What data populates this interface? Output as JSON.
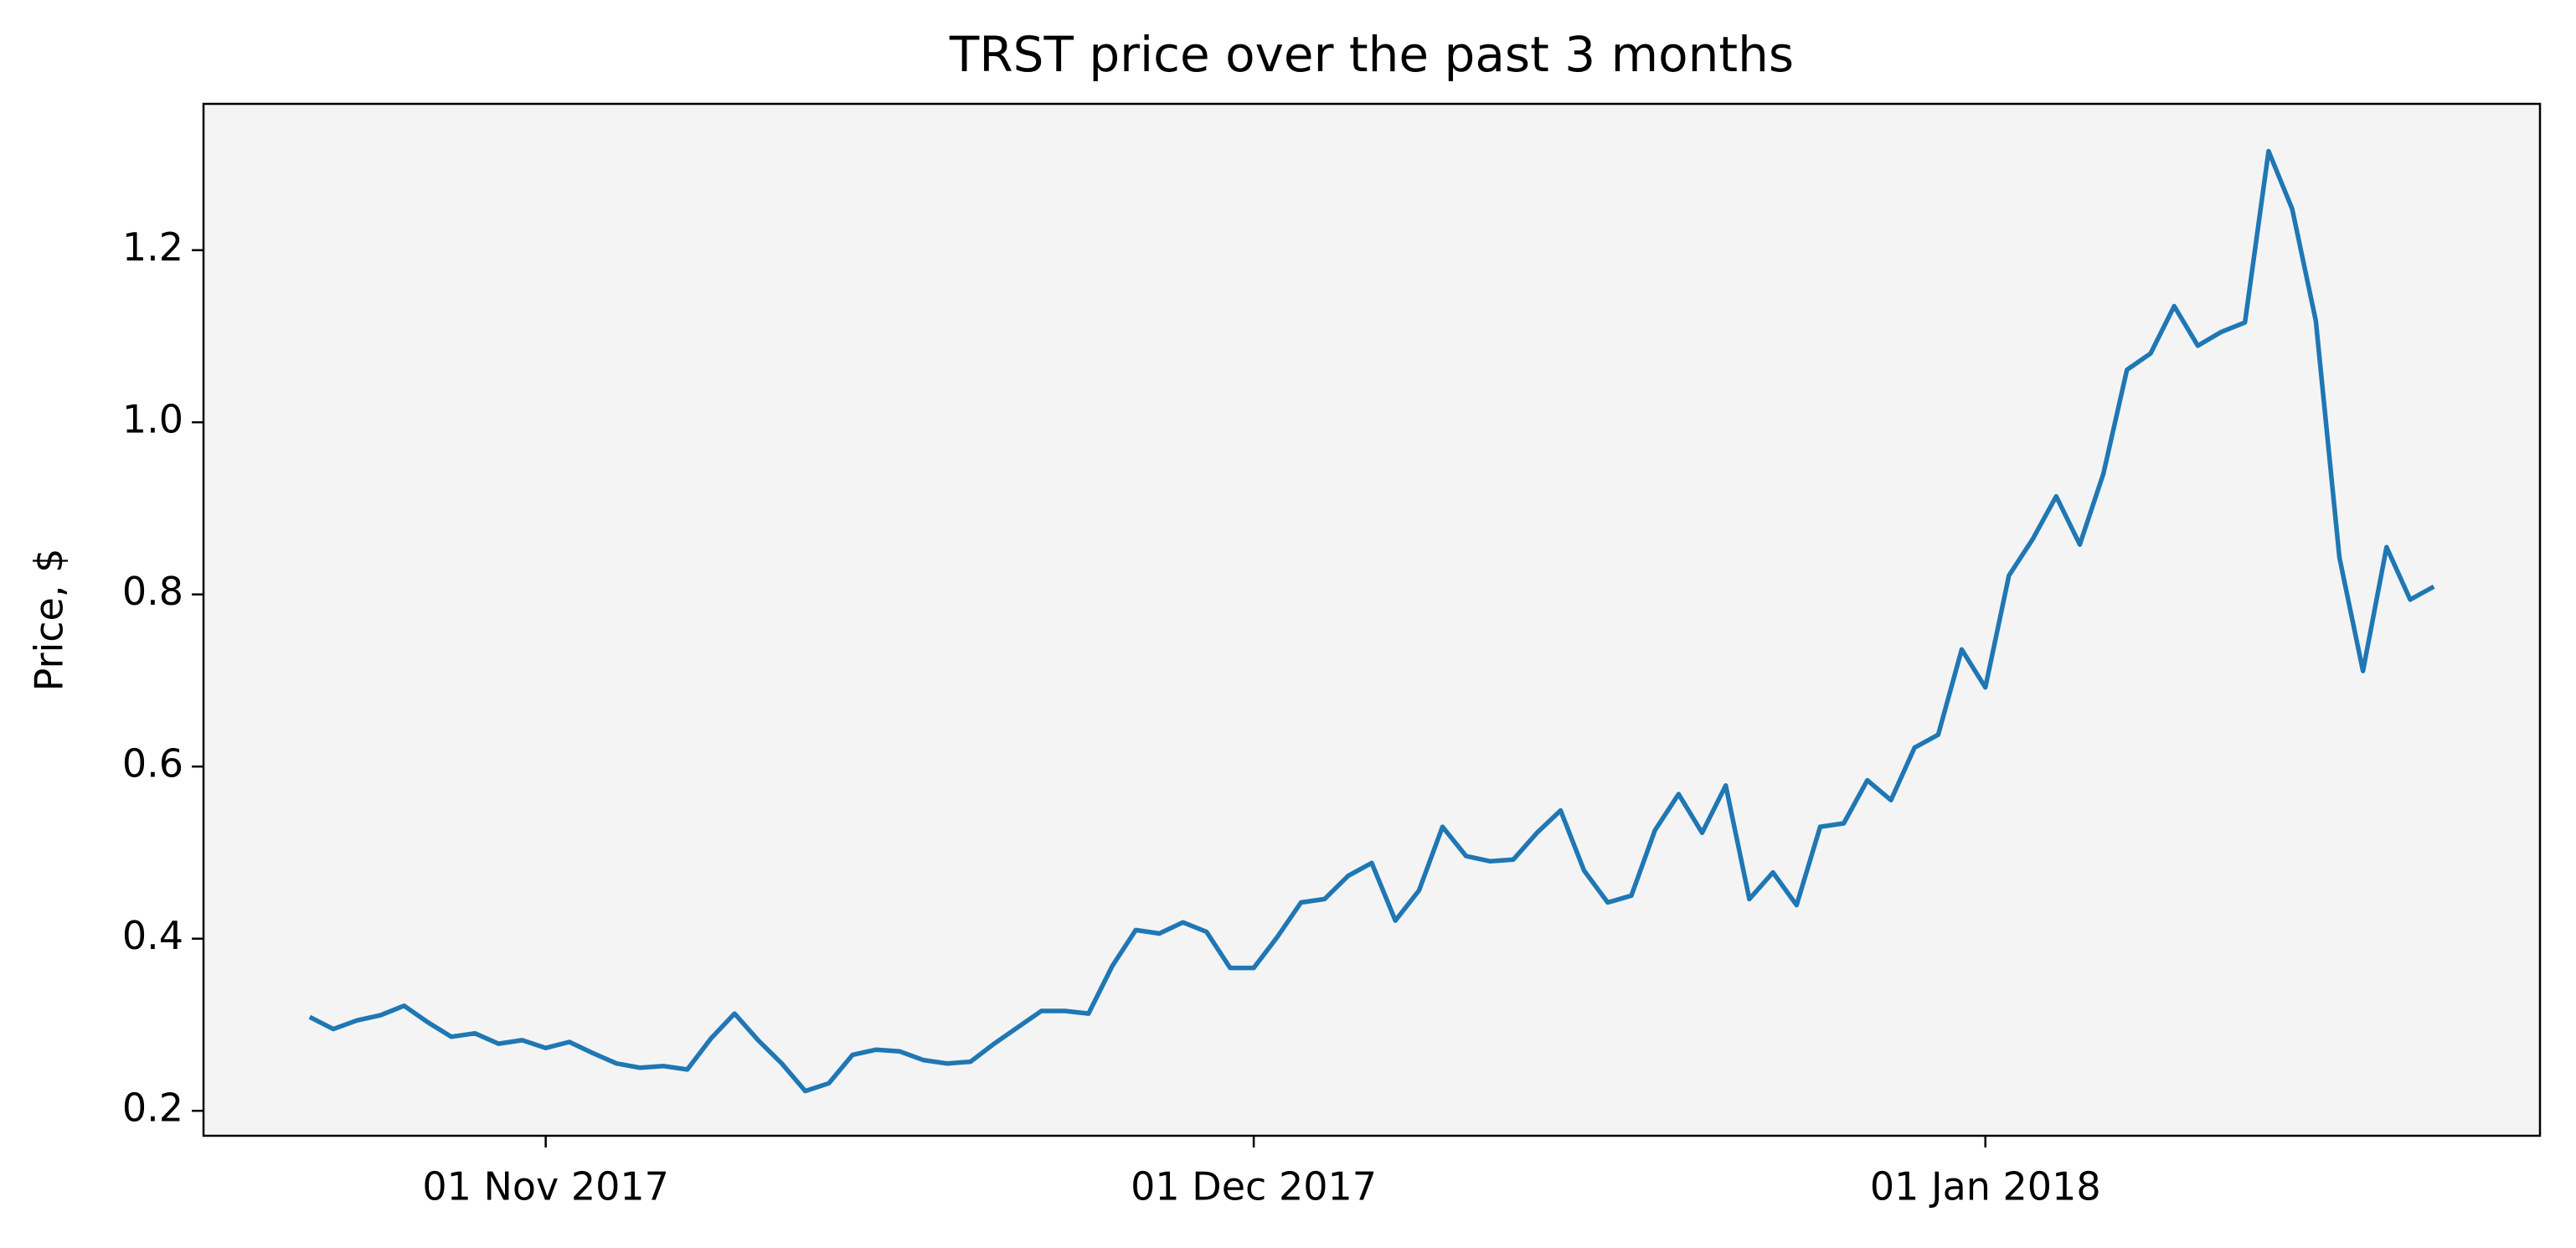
{
  "chart_data": {
    "type": "line",
    "title": "TRST price over the past 3 months",
    "y_label": "Price, $",
    "x": [
      "2017-10-22",
      "2017-10-23",
      "2017-10-24",
      "2017-10-25",
      "2017-10-26",
      "2017-10-27",
      "2017-10-28",
      "2017-10-29",
      "2017-10-30",
      "2017-10-31",
      "2017-11-01",
      "2017-11-02",
      "2017-11-03",
      "2017-11-04",
      "2017-11-05",
      "2017-11-06",
      "2017-11-07",
      "2017-11-08",
      "2017-11-09",
      "2017-11-10",
      "2017-11-11",
      "2017-11-12",
      "2017-11-13",
      "2017-11-14",
      "2017-11-15",
      "2017-11-16",
      "2017-11-17",
      "2017-11-18",
      "2017-11-19",
      "2017-11-20",
      "2017-11-21",
      "2017-11-22",
      "2017-11-23",
      "2017-11-24",
      "2017-11-25",
      "2017-11-26",
      "2017-11-27",
      "2017-11-28",
      "2017-11-29",
      "2017-11-30",
      "2017-12-01",
      "2017-12-02",
      "2017-12-03",
      "2017-12-04",
      "2017-12-05",
      "2017-12-06",
      "2017-12-07",
      "2017-12-08",
      "2017-12-09",
      "2017-12-10",
      "2017-12-11",
      "2017-12-12",
      "2017-12-13",
      "2017-12-14",
      "2017-12-15",
      "2017-12-16",
      "2017-12-17",
      "2017-12-18",
      "2017-12-19",
      "2017-12-20",
      "2017-12-21",
      "2017-12-22",
      "2017-12-23",
      "2017-12-24",
      "2017-12-25",
      "2017-12-26",
      "2017-12-27",
      "2017-12-28",
      "2017-12-29",
      "2017-12-30",
      "2017-12-31",
      "2018-01-01",
      "2018-01-02",
      "2018-01-03",
      "2018-01-04",
      "2018-01-05",
      "2018-01-06",
      "2018-01-07",
      "2018-01-08",
      "2018-01-09",
      "2018-01-10",
      "2018-01-11",
      "2018-01-12",
      "2018-01-13",
      "2018-01-14",
      "2018-01-15",
      "2018-01-16",
      "2018-01-17",
      "2018-01-18",
      "2018-01-19",
      "2018-01-20"
    ],
    "series": [
      {
        "color": "#1f77b4",
        "values": [
          0.309,
          0.295,
          0.305,
          0.311,
          0.322,
          0.303,
          0.286,
          0.29,
          0.278,
          0.282,
          0.273,
          0.28,
          0.267,
          0.255,
          0.25,
          0.252,
          0.248,
          0.284,
          0.313,
          0.282,
          0.255,
          0.223,
          0.232,
          0.265,
          0.271,
          0.269,
          0.259,
          0.255,
          0.257,
          0.278,
          0.297,
          0.316,
          0.316,
          0.313,
          0.368,
          0.41,
          0.406,
          0.419,
          0.408,
          0.366,
          0.366,
          0.402,
          0.442,
          0.446,
          0.473,
          0.488,
          0.421,
          0.456,
          0.53,
          0.496,
          0.49,
          0.492,
          0.523,
          0.549,
          0.479,
          0.442,
          0.45,
          0.526,
          0.568,
          0.523,
          0.578,
          0.446,
          0.477,
          0.439,
          0.53,
          0.534,
          0.584,
          0.561,
          0.622,
          0.637,
          0.736,
          0.692,
          0.822,
          0.864,
          0.914,
          0.858,
          0.94,
          1.061,
          1.08,
          1.135,
          1.089,
          1.105,
          1.116,
          1.315,
          1.248,
          1.118,
          0.843,
          0.711,
          0.855,
          0.794,
          0.809
        ]
      }
    ],
    "xlim": [
      "2017-10-17T12:00:00Z",
      "2018-01-24T12:00:00Z"
    ],
    "xticks": [
      {
        "value": "2017-11-01",
        "label": "01 Nov 2017"
      },
      {
        "value": "2017-12-01",
        "label": "01 Dec 2017"
      },
      {
        "value": "2018-01-01",
        "label": "01 Jan 2018"
      }
    ],
    "ylim": [
      0.171,
      1.37
    ],
    "yticks": [
      0.2,
      0.4,
      0.6,
      0.8,
      {
        "value": 1,
        "label": "1.0"
      },
      1.2
    ],
    "background": "#f4f4f4"
  }
}
